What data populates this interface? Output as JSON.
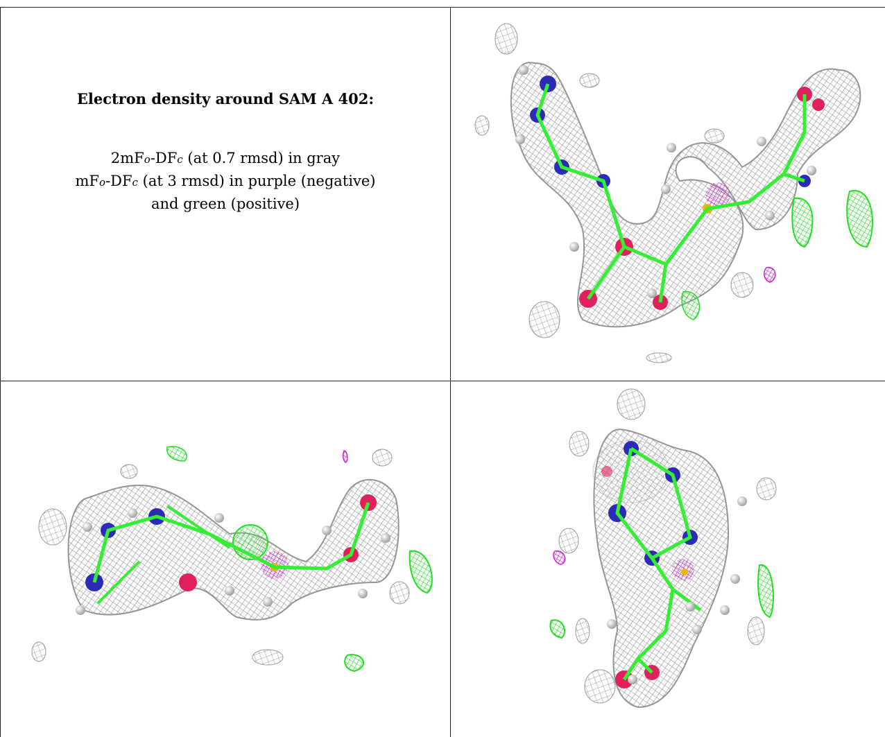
{
  "caption": {
    "title": "Electron density around SAM A 402:",
    "line1": {
      "pre": "2mF",
      "sub1": "o",
      "mid": "-DF",
      "sub2": "c",
      "post": " (at 0.7 rmsd) in gray"
    },
    "line2": {
      "pre": "mF",
      "sub1": "o",
      "mid": "-DF",
      "sub2": "c",
      "post": " (at 3 rmsd) in purple (negative)"
    },
    "line3": "and green (positive)"
  },
  "colors": {
    "mesh_2fofc": "#8c8c8c",
    "mesh_positive": "#22dd22",
    "mesh_negative": "#cc22cc",
    "carbon": "#33ee33",
    "nitrogen": "#2b2bb8",
    "oxygen": "#e0205a",
    "sulfur": "#e6b800",
    "hydrogen": "#e6e6e6"
  },
  "panels": [
    {
      "name": "view-1",
      "icon": "molecular-density-view"
    },
    {
      "name": "view-2",
      "icon": "molecular-density-view"
    },
    {
      "name": "view-3",
      "icon": "molecular-density-view"
    }
  ]
}
